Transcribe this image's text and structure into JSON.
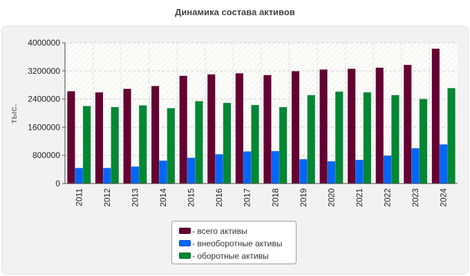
{
  "chart_data": {
    "type": "bar",
    "title": "Динамика состава активов",
    "ylabel": "тыс.",
    "xlabel": "",
    "ylim": [
      0,
      4000000
    ],
    "yticks": [
      0,
      800000,
      1600000,
      2400000,
      3200000,
      4000000
    ],
    "grid": true,
    "legend_position": "bottom",
    "categories": [
      "2011",
      "2012",
      "2013",
      "2014",
      "2015",
      "2016",
      "2017",
      "2018",
      "2019",
      "2020",
      "2021",
      "2022",
      "2023",
      "2024"
    ],
    "series": [
      {
        "name": "- всего активы",
        "color": "#660033",
        "values": [
          2620000,
          2590000,
          2690000,
          2770000,
          3060000,
          3100000,
          3130000,
          3080000,
          3190000,
          3240000,
          3260000,
          3290000,
          3370000,
          3830000
        ]
      },
      {
        "name": "- внеоборотные активы",
        "color": "#0066ff",
        "values": [
          440000,
          440000,
          480000,
          650000,
          730000,
          830000,
          910000,
          920000,
          690000,
          630000,
          670000,
          790000,
          1000000,
          1110000
        ]
      },
      {
        "name": "- оборотные активы",
        "color": "#008833",
        "values": [
          2200000,
          2170000,
          2220000,
          2140000,
          2340000,
          2290000,
          2230000,
          2170000,
          2510000,
          2610000,
          2590000,
          2510000,
          2400000,
          2710000
        ]
      }
    ]
  }
}
